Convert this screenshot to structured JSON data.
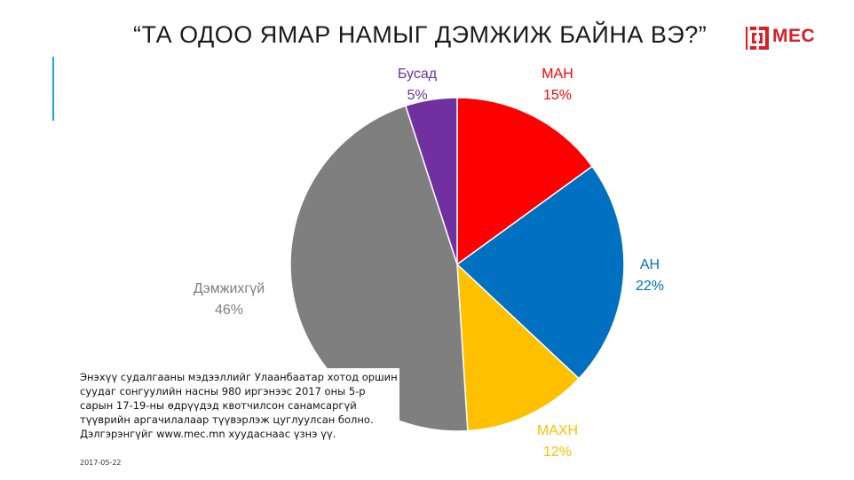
{
  "slide": {
    "title": "“ТА ОДОО ЯМАР НАМЫГ ДЭМЖИЖ БАЙНА ВЭ?”",
    "logo_text": "MEC",
    "note": "Энэхүү судалгааны мэдээллийг Улаанбаатар хотод оршин суудаг сонгуулийн насны 980 иргэнээс 2017 оны 5-р сарын 17-19-ны өдрүүдэд квотчилсон санамсаргүй түүврийн аргачилалаар түүвэрлэж цуглуулсан болно. Дэлгэрэнгүйг www.mec.mn хуудаснаас үзнэ үү.",
    "date": "2017-05-22",
    "colors": {
      "title": "#1a1a1a",
      "accent": "#2e9bd6",
      "logo": "#d61f26"
    }
  },
  "chart_data": {
    "type": "pie",
    "title": "“ТА ОДОО ЯМАР НАМЫГ ДЭМЖИЖ БАЙНА ВЭ?”",
    "start": "12 o'clock, clockwise",
    "slices": [
      {
        "label": "МАН",
        "value": 15,
        "value_label": "15%",
        "color": "#ff0000"
      },
      {
        "label": "АН",
        "value": 22,
        "value_label": "22%",
        "color": "#0070c0"
      },
      {
        "label": "МАХН",
        "value": 12,
        "value_label": "12%",
        "color": "#ffc000"
      },
      {
        "label": "Дэмжихгүй",
        "value": 46,
        "value_label": "46%",
        "color": "#7f7f7f"
      },
      {
        "label": "Бусад",
        "value": 5,
        "value_label": "5%",
        "color": "#7030a0"
      }
    ]
  }
}
